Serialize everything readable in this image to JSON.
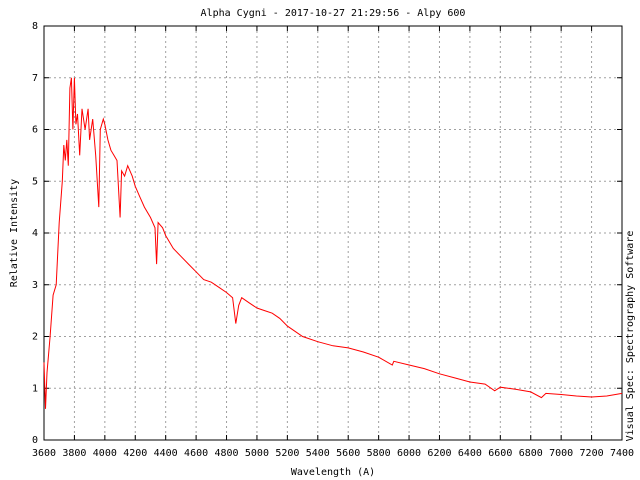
{
  "chart_data": {
    "type": "line",
    "title": "Alpha Cygni - 2017-10-27 21:29:56 - Alpy 600",
    "x_label": "Wavelength (A)",
    "y_label": "Relative Intensity",
    "side_label": "Visual Spec: Spectrography Software",
    "x": [
      3600,
      3610,
      3620,
      3640,
      3660,
      3680,
      3700,
      3720,
      3730,
      3740,
      3750,
      3760,
      3770,
      3780,
      3790,
      3800,
      3810,
      3820,
      3835,
      3850,
      3870,
      3890,
      3900,
      3920,
      3940,
      3960,
      3970,
      3990,
      4000,
      4020,
      4040,
      4060,
      4080,
      4100,
      4110,
      4130,
      4150,
      4180,
      4200,
      4230,
      4260,
      4300,
      4330,
      4340,
      4350,
      4380,
      4400,
      4450,
      4500,
      4550,
      4600,
      4650,
      4700,
      4750,
      4800,
      4840,
      4861,
      4880,
      4900,
      4950,
      5000,
      5050,
      5100,
      5150,
      5200,
      5250,
      5300,
      5400,
      5500,
      5600,
      5700,
      5800,
      5890,
      5900,
      6000,
      6100,
      6200,
      6300,
      6400,
      6500,
      6563,
      6600,
      6700,
      6800,
      6870,
      6900,
      7000,
      7100,
      7200,
      7300,
      7400
    ],
    "values": [
      1.5,
      0.6,
      1.3,
      2.0,
      2.8,
      3.0,
      4.2,
      5.0,
      5.7,
      5.4,
      5.8,
      5.3,
      6.8,
      7.0,
      6.0,
      7.0,
      6.1,
      6.3,
      5.5,
      6.4,
      6.0,
      6.4,
      5.8,
      6.2,
      5.5,
      4.5,
      6.0,
      6.2,
      6.1,
      5.8,
      5.6,
      5.5,
      5.4,
      4.3,
      5.2,
      5.1,
      5.3,
      5.1,
      4.9,
      4.7,
      4.5,
      4.3,
      4.1,
      3.4,
      4.2,
      4.1,
      3.95,
      3.7,
      3.55,
      3.4,
      3.25,
      3.1,
      3.05,
      2.95,
      2.85,
      2.75,
      2.25,
      2.6,
      2.75,
      2.65,
      2.55,
      2.5,
      2.45,
      2.35,
      2.2,
      2.1,
      2.0,
      1.9,
      1.82,
      1.78,
      1.7,
      1.6,
      1.45,
      1.52,
      1.45,
      1.38,
      1.28,
      1.2,
      1.12,
      1.08,
      0.95,
      1.02,
      0.98,
      0.93,
      0.82,
      0.9,
      0.88,
      0.85,
      0.83,
      0.85,
      0.9
    ],
    "color": "#ff0000",
    "xlim": [
      3600,
      7400
    ],
    "xticks": [
      3600,
      3800,
      4000,
      4200,
      4400,
      4600,
      4800,
      5000,
      5200,
      5400,
      5600,
      5800,
      6000,
      6200,
      6400,
      6600,
      6800,
      7000,
      7200,
      7400
    ],
    "ylim": [
      0,
      8
    ],
    "yticks": [
      0,
      1,
      2,
      3,
      4,
      5,
      6,
      7,
      8
    ],
    "grid": true
  }
}
